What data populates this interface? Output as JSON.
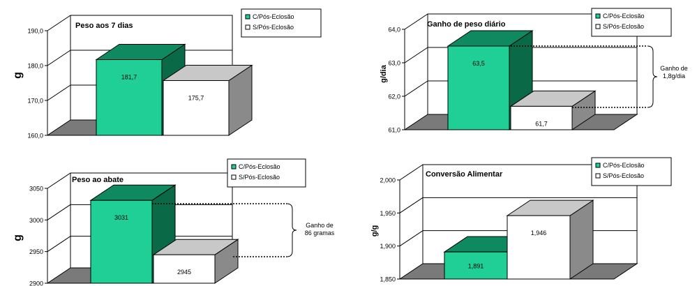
{
  "colors": {
    "series_a_front": "#1fcf96",
    "series_a_top": "#0f8a60",
    "series_a_side": "#0a6a48",
    "series_b_front": "#ffffff",
    "series_b_top": "#c8c8c8",
    "series_b_side": "#8a8a8a",
    "floor": "#7a7a7a",
    "wall": "#ffffff"
  },
  "legend_labels": [
    "C/Pós-Eclosão",
    "S/Pós-Eclosão"
  ],
  "chart_data": [
    {
      "type": "bar",
      "title": "Peso aos 7 dias",
      "ylabel": "g",
      "ylim": [
        160,
        190
      ],
      "yticks": [
        "160,0",
        "170,0",
        "180,0",
        "190,0"
      ],
      "series": [
        {
          "name": "C/Pós-Eclosão",
          "values": [
            181.7
          ],
          "label": "181,7"
        },
        {
          "name": "S/Pós-Eclosão",
          "values": [
            175.7
          ],
          "label": "175,7"
        }
      ],
      "annotation": ""
    },
    {
      "type": "bar",
      "title": "Ganho de peso diário",
      "ylabel": "g/dia",
      "ylim": [
        61,
        64
      ],
      "yticks": [
        "61,0",
        "62,0",
        "63,0",
        "64,0"
      ],
      "series": [
        {
          "name": "C/Pós-Eclosão",
          "values": [
            63.5
          ],
          "label": "63,5"
        },
        {
          "name": "S/Pós-Eclosão",
          "values": [
            61.7
          ],
          "label": "61,7"
        }
      ],
      "annotation": "Ganho de\n1,8g/dia"
    },
    {
      "type": "bar",
      "title": "Peso ao abate",
      "ylabel": "g",
      "ylim": [
        2900,
        3050
      ],
      "yticks": [
        "2900",
        "2950",
        "3000",
        "3050"
      ],
      "series": [
        {
          "name": "C/Pós-Eclosão",
          "values": [
            3031
          ],
          "label": "3031"
        },
        {
          "name": "S/Pós-Eclosão",
          "values": [
            2945
          ],
          "label": "2945"
        }
      ],
      "annotation": "Ganho de\n86 gramas"
    },
    {
      "type": "bar",
      "title": "Conversão Alimentar",
      "ylabel": "g/g",
      "ylim": [
        1.85,
        2.0
      ],
      "yticks": [
        "1,850",
        "1,900",
        "1,950",
        "2,000"
      ],
      "series": [
        {
          "name": "C/Pós-Eclosão",
          "values": [
            1.891
          ],
          "label": "1,891"
        },
        {
          "name": "S/Pós-Eclosão",
          "values": [
            1.946
          ],
          "label": "1,946"
        }
      ],
      "annotation": ""
    }
  ]
}
